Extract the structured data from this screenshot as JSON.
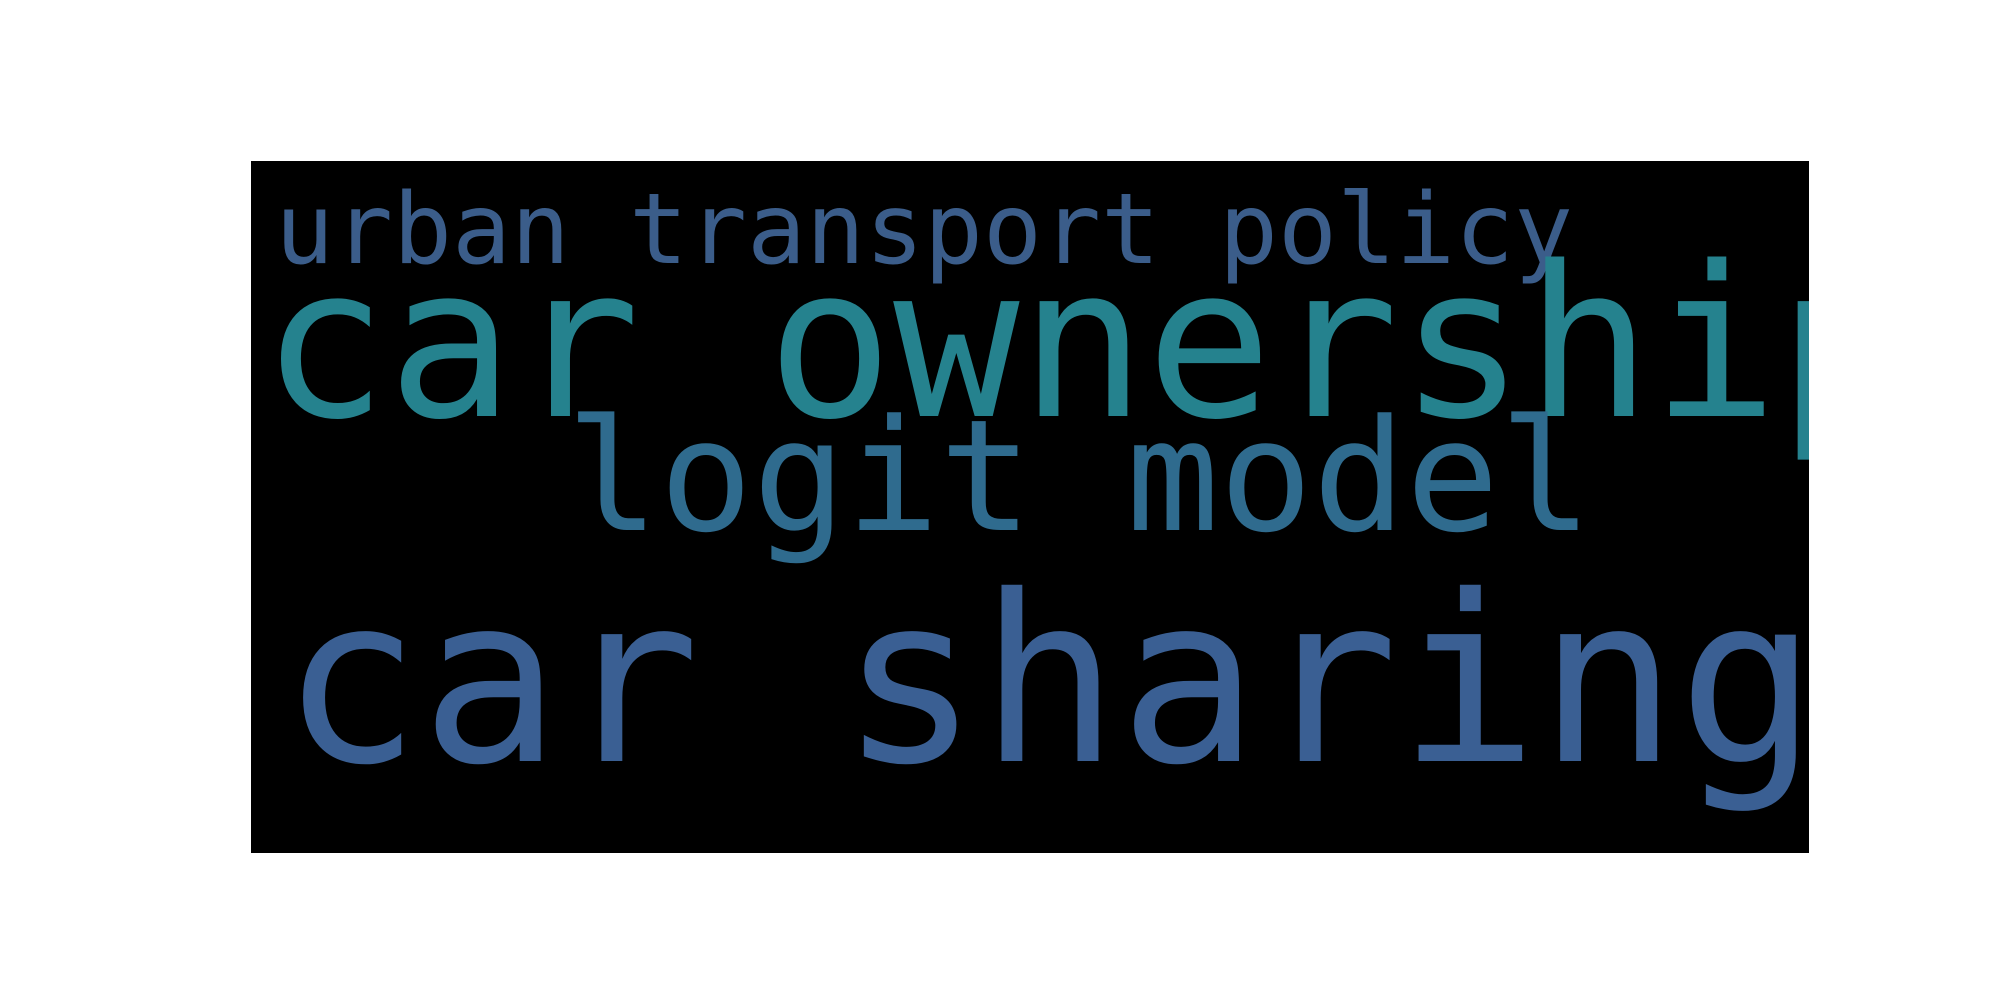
{
  "words": [
    {
      "text": "urban transport policy",
      "color": "#3b5d8a"
    },
    {
      "text": "car ownership",
      "color": "#25828e"
    },
    {
      "text": "logit model",
      "color": "#2f6b8e"
    },
    {
      "text": "car sharing",
      "color": "#3a5f93"
    }
  ],
  "colors": {
    "page_background": "#ffffff",
    "canvas_background": "#000000"
  }
}
